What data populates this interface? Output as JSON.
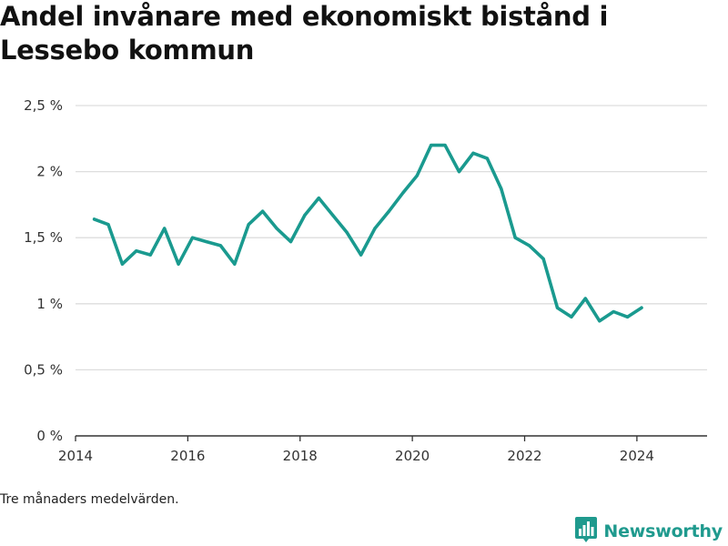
{
  "title": "Andel invånare med ekonomiskt bistånd i Lessebo kommun",
  "footnote": "Tre månaders medelvärden.",
  "brand": "Newsworthy",
  "colors": {
    "line": "#1a9a8f",
    "grid": "#dddddd",
    "axis": "#333333",
    "brand": "#1f9a8e"
  },
  "icons": {
    "brand_logo": "bar-chart-logo-icon"
  },
  "chart_data": {
    "type": "line",
    "title": "Andel invånare med ekonomiskt bistånd i Lessebo kommun",
    "xlabel": "",
    "ylabel": "",
    "xlim": [
      2014.0,
      2025.25
    ],
    "ylim": [
      0,
      2.5
    ],
    "grid": true,
    "x_ticks": [
      {
        "value": 2014,
        "label": "2014"
      },
      {
        "value": 2016,
        "label": "2016"
      },
      {
        "value": 2018,
        "label": "2018"
      },
      {
        "value": 2020,
        "label": "2020"
      },
      {
        "value": 2022,
        "label": "2022"
      },
      {
        "value": 2024,
        "label": "2024"
      }
    ],
    "y_ticks": [
      {
        "value": 0,
        "label": "0 %"
      },
      {
        "value": 0.5,
        "label": "0,5 %"
      },
      {
        "value": 1,
        "label": "1 %"
      },
      {
        "value": 1.5,
        "label": "1,5 %"
      },
      {
        "value": 2,
        "label": "2 %"
      },
      {
        "value": 2.5,
        "label": "2,5 %"
      }
    ],
    "series": [
      {
        "x": [
          "2014-05",
          "2014-08",
          "2014-11",
          "2015-02",
          "2015-05",
          "2015-08",
          "2015-11",
          "2016-02",
          "2016-05",
          "2016-08",
          "2016-11",
          "2017-02",
          "2017-05",
          "2017-08",
          "2017-11",
          "2018-02",
          "2018-05",
          "2018-08",
          "2018-11",
          "2019-02",
          "2019-05",
          "2019-08",
          "2019-11",
          "2020-02",
          "2020-05",
          "2020-08",
          "2020-11",
          "2021-02",
          "2021-05",
          "2021-08",
          "2021-11",
          "2022-02",
          "2022-05",
          "2022-08",
          "2022-11",
          "2023-02",
          "2023-05",
          "2023-08",
          "2023-11",
          "2024-02"
        ],
        "y": [
          1.64,
          1.6,
          1.3,
          1.4,
          1.37,
          1.57,
          1.3,
          1.5,
          1.47,
          1.44,
          1.3,
          1.6,
          1.7,
          1.57,
          1.47,
          1.67,
          1.8,
          1.67,
          1.54,
          1.37,
          1.57,
          1.7,
          1.84,
          1.97,
          2.2,
          2.2,
          2.0,
          2.14,
          2.1,
          1.87,
          1.5,
          1.44,
          1.34,
          0.97,
          0.9,
          1.04,
          0.87,
          0.94,
          0.9,
          0.97
        ]
      }
    ]
  }
}
